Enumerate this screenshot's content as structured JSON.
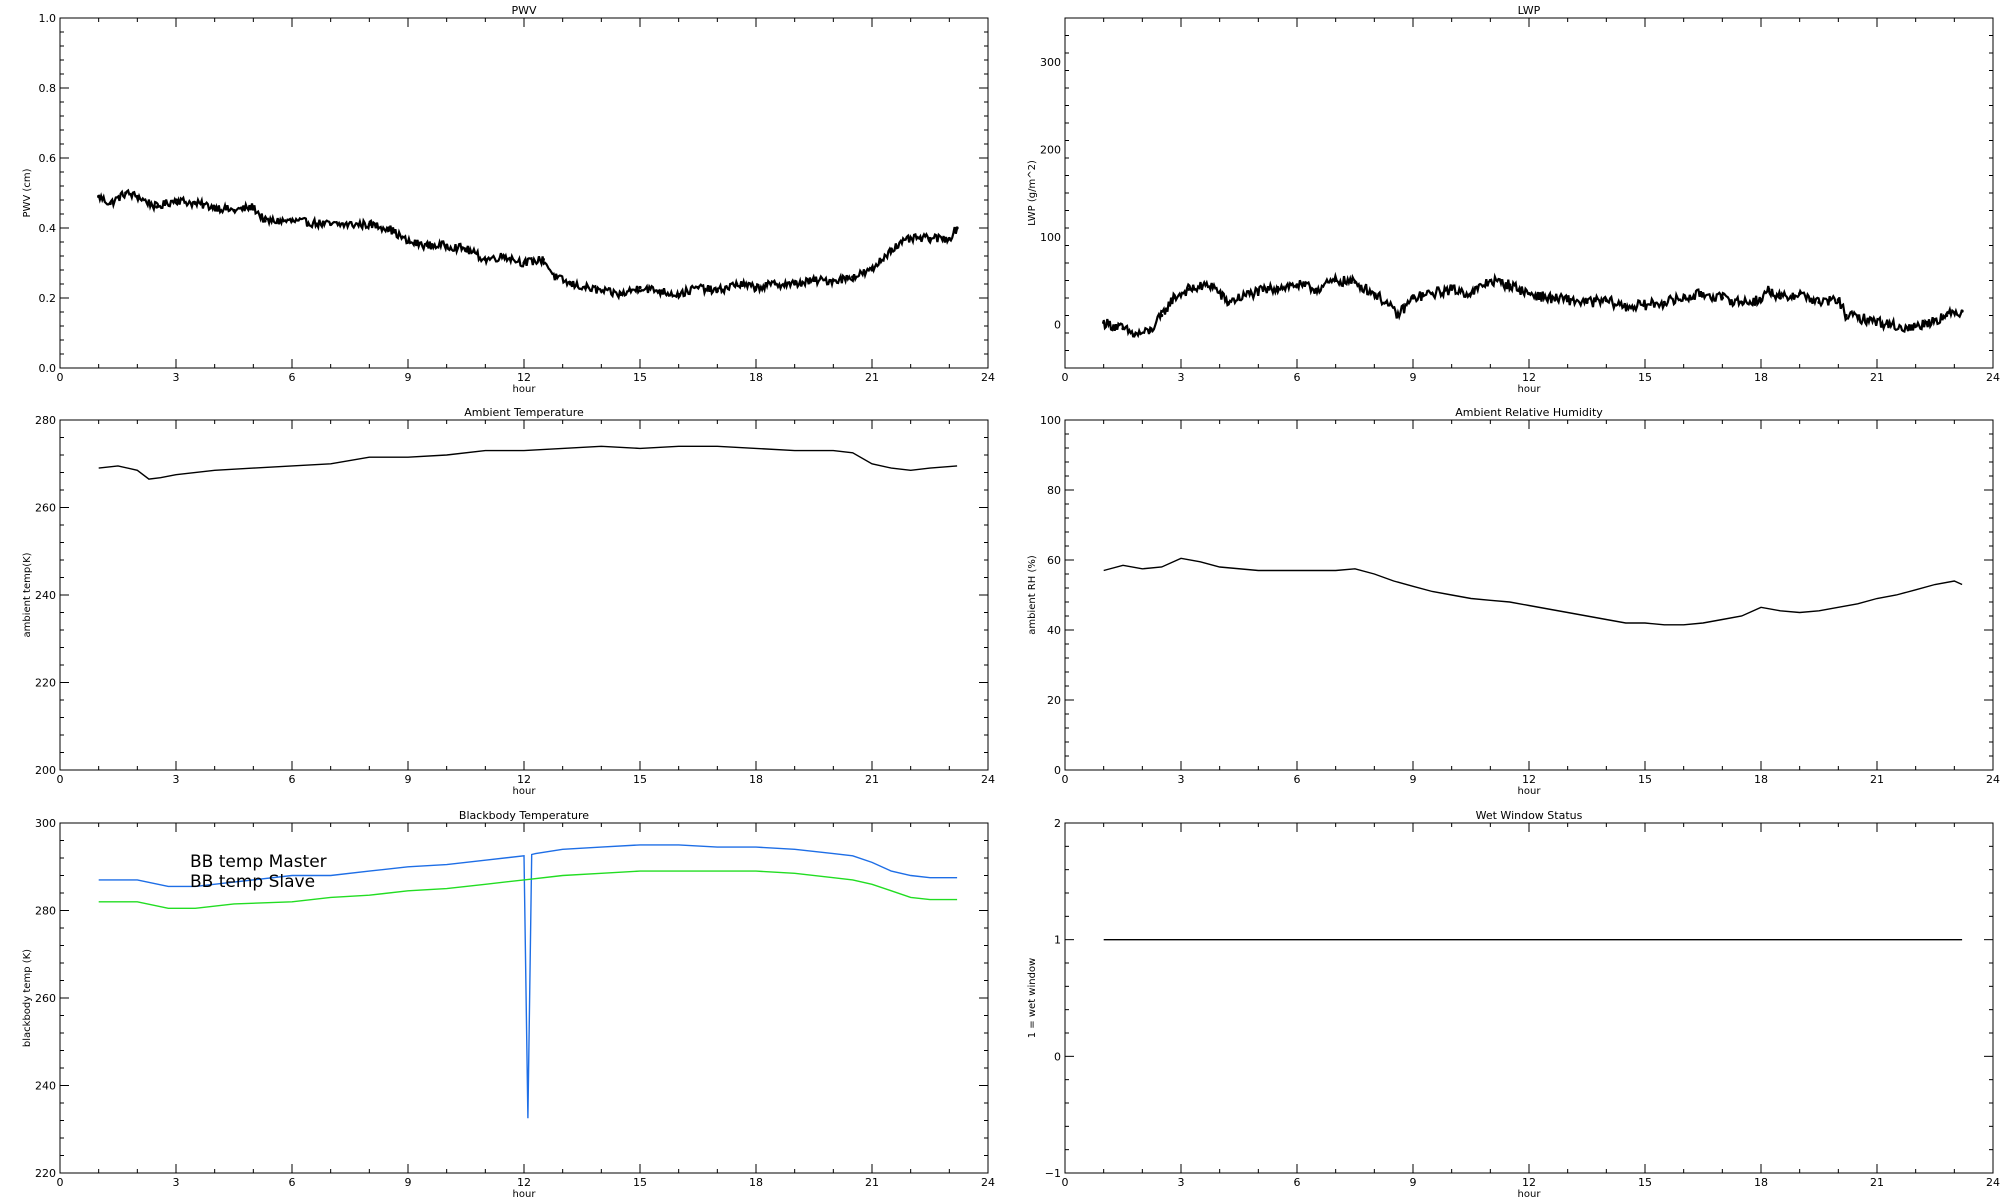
{
  "chart_data": [
    {
      "id": "pwv",
      "type": "scatter",
      "title": "PWV",
      "xlabel": "hour",
      "ylabel": "PWV (cm)",
      "xlim": [
        0,
        24
      ],
      "ylim": [
        0,
        1.0
      ],
      "x_ticks": [
        0,
        3,
        6,
        9,
        12,
        15,
        18,
        21,
        24
      ],
      "y_ticks": [
        0.0,
        0.2,
        0.4,
        0.6,
        0.8,
        1.0
      ],
      "y_tick_labels": [
        "0.0",
        "0.2",
        "0.4",
        "0.6",
        "0.8",
        "1.0"
      ],
      "series": [
        {
          "color": "#000000",
          "noise": 0.012,
          "x": [
            1,
            1.3,
            1.7,
            2.0,
            2.5,
            3.0,
            3.5,
            4.0,
            4.5,
            5.0,
            5.3,
            6.0,
            7.0,
            8.0,
            8.5,
            9.0,
            9.5,
            10.0,
            10.5,
            11.0,
            11.5,
            12.0,
            12.5,
            12.8,
            13.2,
            13.6,
            14.0,
            14.5,
            15.0,
            15.5,
            16.0,
            16.5,
            17.0,
            17.5,
            18.0,
            18.5,
            19.0,
            19.5,
            20.0,
            20.5,
            21.0,
            21.5,
            22.0,
            22.5,
            23.0,
            23.2
          ],
          "y": [
            0.49,
            0.47,
            0.5,
            0.49,
            0.46,
            0.48,
            0.47,
            0.46,
            0.45,
            0.46,
            0.42,
            0.42,
            0.41,
            0.41,
            0.4,
            0.36,
            0.35,
            0.35,
            0.34,
            0.31,
            0.32,
            0.3,
            0.31,
            0.26,
            0.24,
            0.23,
            0.22,
            0.21,
            0.23,
            0.22,
            0.21,
            0.23,
            0.22,
            0.24,
            0.23,
            0.24,
            0.24,
            0.25,
            0.25,
            0.26,
            0.28,
            0.34,
            0.37,
            0.37,
            0.37,
            0.4
          ]
        }
      ]
    },
    {
      "id": "lwp",
      "type": "scatter",
      "title": "LWP",
      "xlabel": "hour",
      "ylabel": "LWP (g/m^2)",
      "xlim": [
        0,
        24
      ],
      "ylim": [
        -50,
        350
      ],
      "x_ticks": [
        0,
        3,
        6,
        9,
        12,
        15,
        18,
        21,
        24
      ],
      "y_ticks": [
        0,
        100,
        200,
        300
      ],
      "y_tick_labels": [
        "0",
        "100",
        "200",
        "300"
      ],
      "series": [
        {
          "color": "#000000",
          "noise": 6,
          "x": [
            1,
            1.5,
            1.8,
            2.2,
            2.5,
            2.8,
            3.2,
            3.8,
            4.2,
            4.8,
            5.5,
            6.0,
            6.5,
            7.0,
            7.5,
            8.0,
            8.3,
            8.6,
            9.0,
            9.5,
            10.0,
            10.5,
            11.0,
            11.5,
            12.0,
            12.5,
            13.0,
            13.5,
            14.0,
            14.5,
            15.0,
            15.5,
            16.0,
            16.5,
            17.0,
            17.5,
            18.0,
            18.2,
            18.5,
            19.0,
            19.5,
            20.0,
            20.2,
            20.8,
            21.3,
            21.8,
            22.3,
            22.8,
            23.2
          ],
          "y": [
            2,
            -5,
            -12,
            -8,
            10,
            30,
            40,
            45,
            25,
            35,
            42,
            45,
            40,
            50,
            48,
            35,
            25,
            10,
            30,
            35,
            40,
            35,
            50,
            45,
            35,
            30,
            28,
            25,
            27,
            20,
            22,
            25,
            30,
            35,
            30,
            25,
            28,
            40,
            30,
            35,
            25,
            28,
            10,
            5,
            0,
            -5,
            2,
            10,
            15
          ]
        }
      ]
    },
    {
      "id": "ambient-temp",
      "type": "line",
      "title": "Ambient Temperature",
      "xlabel": "hour",
      "ylabel": "ambient temp(K)",
      "xlim": [
        0,
        24
      ],
      "ylim": [
        200,
        280
      ],
      "x_ticks": [
        0,
        3,
        6,
        9,
        12,
        15,
        18,
        21,
        24
      ],
      "y_ticks": [
        200,
        220,
        240,
        260,
        280
      ],
      "y_tick_labels": [
        "200",
        "220",
        "240",
        "260",
        "280"
      ],
      "series": [
        {
          "color": "#000000",
          "x": [
            1,
            1.5,
            2.0,
            2.3,
            2.6,
            3.0,
            4.0,
            5.0,
            6.0,
            7.0,
            8.0,
            9.0,
            10.0,
            11.0,
            12.0,
            13.0,
            14.0,
            15.0,
            16.0,
            17.0,
            18.0,
            19.0,
            20.0,
            20.5,
            21.0,
            21.5,
            22.0,
            22.5,
            23.2
          ],
          "y": [
            269,
            269.5,
            268.5,
            266.5,
            266.8,
            267.5,
            268.5,
            269,
            269.5,
            270,
            271.5,
            271.5,
            272,
            273,
            273,
            273.5,
            274,
            273.5,
            274,
            274,
            273.5,
            273,
            273,
            272.5,
            270,
            269,
            268.5,
            269,
            269.5
          ]
        }
      ]
    },
    {
      "id": "ambient-rh",
      "type": "line",
      "title": "Ambient Relative Humidity",
      "xlabel": "hour",
      "ylabel": "ambient RH (%)",
      "xlim": [
        0,
        24
      ],
      "ylim": [
        0,
        100
      ],
      "x_ticks": [
        0,
        3,
        6,
        9,
        12,
        15,
        18,
        21,
        24
      ],
      "y_ticks": [
        0,
        20,
        40,
        60,
        80,
        100
      ],
      "y_tick_labels": [
        "0",
        "20",
        "40",
        "60",
        "80",
        "100"
      ],
      "series": [
        {
          "color": "#000000",
          "x": [
            1,
            1.5,
            2.0,
            2.5,
            3.0,
            3.5,
            4.0,
            5.0,
            6.0,
            7.0,
            7.5,
            8.0,
            8.5,
            9.0,
            9.5,
            10.0,
            10.5,
            11.0,
            11.5,
            12.0,
            12.5,
            13.0,
            13.5,
            14.0,
            14.5,
            15.0,
            15.5,
            16.0,
            16.5,
            17.0,
            17.5,
            18.0,
            18.5,
            19.0,
            19.5,
            20.0,
            20.5,
            21.0,
            21.5,
            22.0,
            22.5,
            23.0,
            23.2
          ],
          "y": [
            57,
            58.5,
            57.5,
            58,
            60.5,
            59.5,
            58,
            57,
            57,
            57,
            57.5,
            56,
            54,
            52.5,
            51,
            50,
            49,
            48.5,
            48,
            47,
            46,
            45,
            44,
            43,
            42,
            42,
            41.5,
            41.5,
            42,
            43,
            44,
            46.5,
            45.5,
            45,
            45.5,
            46.5,
            47.5,
            49,
            50,
            51.5,
            53,
            54,
            53
          ]
        }
      ]
    },
    {
      "id": "blackbody-temp",
      "type": "line",
      "title": "Blackbody Temperature",
      "xlabel": "hour",
      "ylabel": "blackbody temp (K)",
      "xlim": [
        0,
        24
      ],
      "ylim": [
        220,
        300
      ],
      "x_ticks": [
        0,
        3,
        6,
        9,
        12,
        15,
        18,
        21,
        24
      ],
      "y_ticks": [
        220,
        240,
        260,
        280,
        300
      ],
      "y_tick_labels": [
        "220",
        "240",
        "260",
        "280",
        "300"
      ],
      "series": [
        {
          "name": "BB temp Master",
          "color": "#1e6ee6",
          "x": [
            1,
            2.0,
            2.8,
            3.5,
            4.5,
            6.0,
            7.0,
            8.0,
            9.0,
            10.0,
            11.0,
            12.0,
            12.1,
            12.2,
            12.3,
            13.0,
            14.0,
            15.0,
            16.0,
            17.0,
            18.0,
            19.0,
            20.0,
            20.5,
            21.0,
            21.5,
            22.0,
            22.5,
            23.2
          ],
          "y": [
            287,
            287,
            285.5,
            285.5,
            286.5,
            288,
            288,
            289,
            290,
            290.5,
            291.5,
            292.5,
            232.5,
            292.8,
            293,
            294,
            294.5,
            295,
            295,
            294.5,
            294.5,
            294,
            293,
            292.5,
            291,
            289,
            288,
            287.5,
            287.5
          ]
        },
        {
          "name": "BB temp Slave",
          "color": "#22dd22",
          "x": [
            1,
            2.0,
            2.8,
            3.5,
            4.5,
            6.0,
            7.0,
            8.0,
            9.0,
            10.0,
            11.0,
            12.0,
            13.0,
            14.0,
            15.0,
            16.0,
            17.0,
            18.0,
            19.0,
            20.0,
            20.5,
            21.0,
            21.5,
            22.0,
            22.5,
            23.2
          ],
          "y": [
            282,
            282,
            280.5,
            280.5,
            281.5,
            282,
            283,
            283.5,
            284.5,
            285,
            286,
            287,
            288,
            288.5,
            289,
            289,
            289,
            289,
            288.5,
            287.5,
            287,
            286,
            284.5,
            283,
            282.5,
            282.5
          ]
        }
      ]
    },
    {
      "id": "wet-window",
      "type": "line",
      "title": "Wet Window Status",
      "xlabel": "hour",
      "ylabel": "1 = wet window",
      "xlim": [
        0,
        24
      ],
      "ylim": [
        -1,
        2
      ],
      "x_ticks": [
        0,
        3,
        6,
        9,
        12,
        15,
        18,
        21,
        24
      ],
      "y_ticks": [
        -1,
        0,
        1,
        2
      ],
      "y_tick_labels": [
        "−1",
        "0",
        "1",
        "2"
      ],
      "series": [
        {
          "color": "#000000",
          "x": [
            1,
            23.2
          ],
          "y": [
            1,
            1
          ]
        }
      ]
    }
  ]
}
